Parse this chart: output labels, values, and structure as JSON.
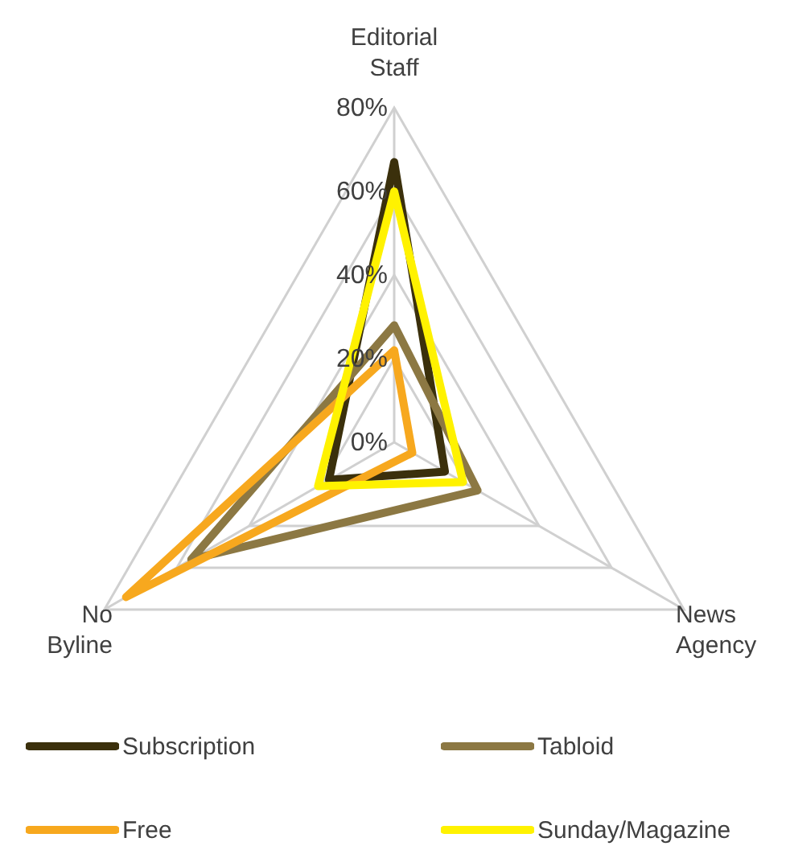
{
  "chart_data": {
    "type": "radar",
    "categories": [
      "Editorial Staff",
      "News Agency",
      "No Byline"
    ],
    "series": [
      {
        "name": "Subscription",
        "color": "#3b300c",
        "values": [
          67,
          14,
          18
        ]
      },
      {
        "name": "Tabloid",
        "color": "#8c7843",
        "values": [
          28,
          23,
          56
        ]
      },
      {
        "name": "Free",
        "color": "#f7a81e",
        "values": [
          22,
          5,
          74
        ]
      },
      {
        "name": "Sunday/Magazine",
        "color": "#fff200",
        "values": [
          60,
          19,
          21
        ]
      }
    ],
    "ylim": [
      0,
      80
    ],
    "yticks": [
      {
        "value": 0,
        "label": "0%"
      },
      {
        "value": 20,
        "label": "20%"
      },
      {
        "value": 40,
        "label": "40%"
      },
      {
        "value": 60,
        "label": "60%"
      },
      {
        "value": 80,
        "label": "80%"
      }
    ],
    "grid": true,
    "legend": "bottom"
  }
}
